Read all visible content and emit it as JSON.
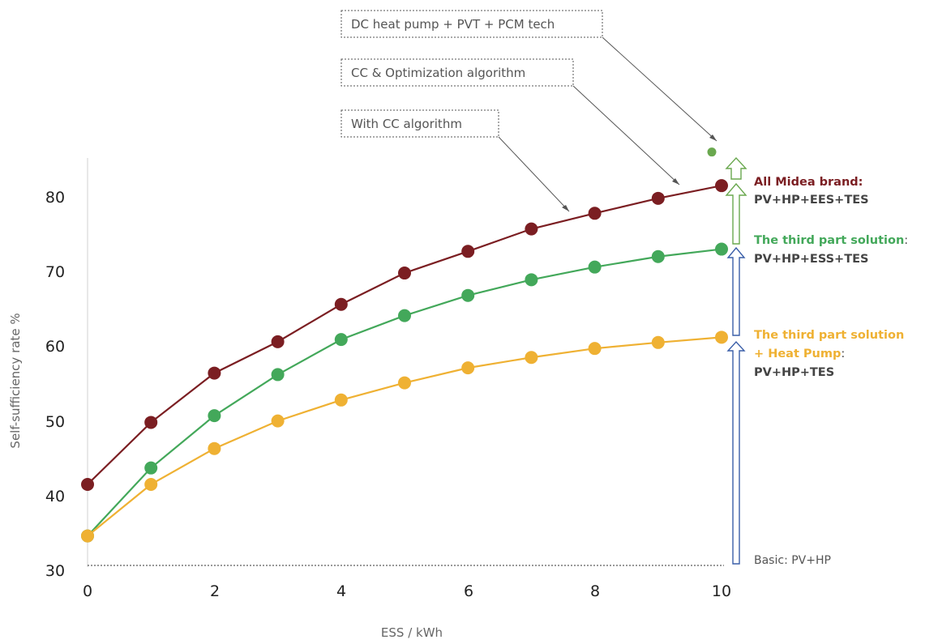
{
  "chart_data": {
    "type": "line",
    "xlabel": "ESS / kWh",
    "ylabel": "Self-sufficiency rate %",
    "xlim": [
      0,
      10
    ],
    "ylim": [
      30,
      85
    ],
    "x_ticks": [
      "0",
      "2",
      "4",
      "6",
      "8",
      "10"
    ],
    "y_ticks": [
      "30",
      "40",
      "50",
      "60",
      "70",
      "80"
    ],
    "x": [
      0,
      1,
      2,
      3,
      4,
      5,
      6,
      7,
      8,
      9,
      10
    ],
    "series": [
      {
        "key": "midea",
        "color": "#7b1e22",
        "values": [
          41.5,
          49.8,
          56.4,
          60.6,
          65.6,
          69.8,
          72.7,
          75.7,
          77.8,
          79.8,
          81.5
        ]
      },
      {
        "key": "third_party",
        "color": "#43a85a",
        "values": [
          34.6,
          43.7,
          50.7,
          56.2,
          60.9,
          64.1,
          66.8,
          68.9,
          70.6,
          72.0,
          73.0
        ]
      },
      {
        "key": "third_party_hp",
        "color": "#efb133",
        "values": [
          34.6,
          41.5,
          46.3,
          50.0,
          52.8,
          55.1,
          57.1,
          58.5,
          59.7,
          60.5,
          61.2
        ]
      }
    ],
    "extra_point": {
      "x": 10,
      "y": 86.0,
      "color": "#6aa84f"
    },
    "baseline": 30.5
  },
  "callouts": [
    {
      "text": "DC heat pump + PVT + PCM tech"
    },
    {
      "text": "CC & Optimization algorithm"
    },
    {
      "text": "With CC algorithm"
    }
  ],
  "labels": {
    "midea_line1": "All Midea brand:",
    "midea_line2": " PV+HP+EES+TES",
    "third_line1": "The third part solution",
    "third_colon": ":",
    "third_line2": "PV+HP+ESS+TES",
    "thirdhp_line1": "The third part solution",
    "thirdhp_line2": "+ Heat Pump",
    "thirdhp_colon": ":",
    "thirdhp_line3": "PV+HP+TES",
    "basic": "Basic:  PV+HP"
  },
  "colors": {
    "midea": "#7b1e22",
    "third_party": "#43a85a",
    "third_party_hp": "#efb133",
    "dark_text": "#444444",
    "arrow_blue": "#3a5ea8",
    "arrow_green": "#6aa84f"
  }
}
